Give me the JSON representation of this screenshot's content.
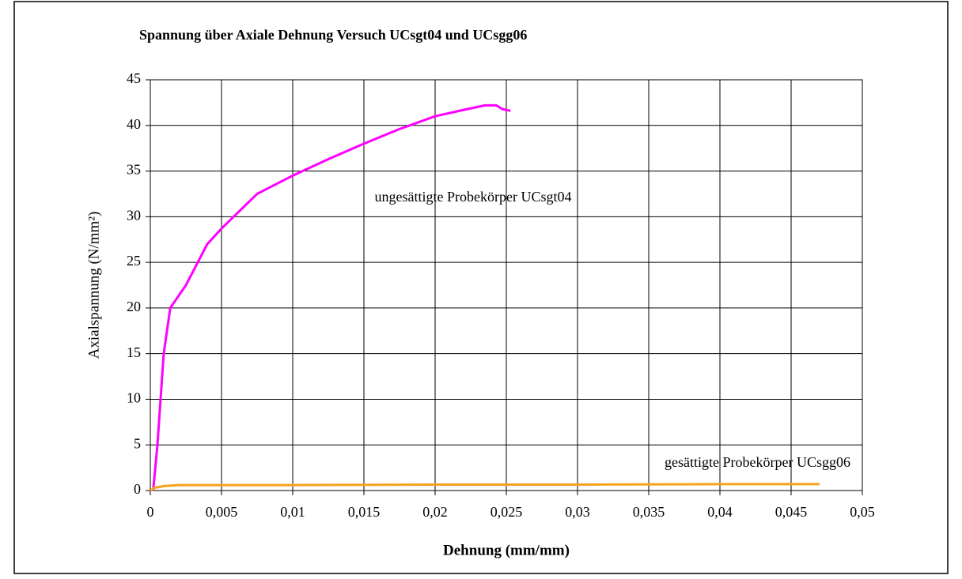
{
  "chart_data": {
    "type": "line",
    "title": "Spannung über Axiale Dehnung Versuch UCsgt04 und UCsgg06",
    "x_label": "Dehnung (mm/mm)",
    "y_label": "Axialspannung (N/mm²)",
    "xlim": [
      0,
      0.05
    ],
    "ylim": [
      0,
      45
    ],
    "xticks": [
      0,
      {
        "value": 0.005,
        "label": "0,005"
      },
      {
        "value": 0.01,
        "label": "0,01"
      },
      {
        "value": 0.015,
        "label": "0,015"
      },
      {
        "value": 0.02,
        "label": "0,02"
      },
      {
        "value": 0.025,
        "label": "0,025"
      },
      {
        "value": 0.03,
        "label": "0,03"
      },
      {
        "value": 0.035,
        "label": "0,035"
      },
      {
        "value": 0.04,
        "label": "0,04"
      },
      {
        "value": 0.045,
        "label": "0,045"
      },
      {
        "value": 0.05,
        "label": "0,05"
      }
    ],
    "yticks": [
      0,
      5,
      10,
      15,
      20,
      25,
      30,
      35,
      40,
      45
    ],
    "grid": true,
    "series": [
      {
        "name": "ungesättigte Probekörper UCsgt04",
        "color": "#ff00ff",
        "x": [
          0.0002,
          0.0005,
          0.00072,
          0.00094,
          0.0014,
          0.0025,
          0.004,
          0.005,
          0.0075,
          0.01,
          0.0125,
          0.015,
          0.0175,
          0.02,
          0.022,
          0.0235,
          0.0243,
          0.0247,
          0.0253
        ],
        "values": [
          0,
          5,
          10,
          15,
          20,
          22.5,
          27,
          28.7,
          32.5,
          34.5,
          36.3,
          38,
          39.6,
          41,
          41.7,
          42.2,
          42.2,
          41.8,
          41.6
        ]
      },
      {
        "name": "gesättigte Probekörper UCsgg06",
        "color": "#f5a31c",
        "x": [
          0,
          0.0003,
          0.001,
          0.002,
          0.01,
          0.02,
          0.03,
          0.04,
          0.047
        ],
        "values": [
          0,
          0.3,
          0.5,
          0.6,
          0.6,
          0.65,
          0.65,
          0.7,
          0.7
        ]
      }
    ]
  }
}
